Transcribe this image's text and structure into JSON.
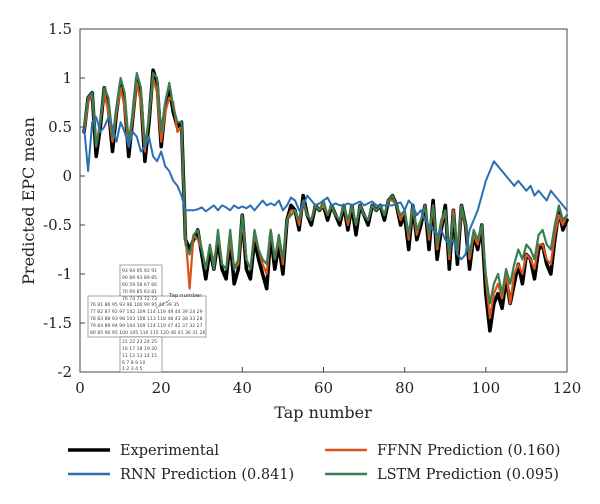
{
  "chart_data": {
    "type": "line",
    "xlabel": "Tap number",
    "ylabel": "Predicted EPC mean",
    "xlim": [
      0,
      120
    ],
    "ylim": [
      -2,
      1.5
    ],
    "xticks": [
      "0",
      "20",
      "40",
      "60",
      "80",
      "100",
      "120"
    ],
    "yticks": [
      "1.5",
      "1",
      "0.5",
      "0",
      "-0.5",
      "-1",
      "-1.5",
      "-2"
    ],
    "grid": false,
    "legend_position": "below",
    "x": [
      1,
      2,
      3,
      4,
      5,
      6,
      7,
      8,
      9,
      10,
      11,
      12,
      13,
      14,
      15,
      16,
      17,
      18,
      19,
      20,
      21,
      22,
      23,
      24,
      25,
      26,
      27,
      28,
      29,
      30,
      31,
      32,
      33,
      34,
      35,
      36,
      37,
      38,
      39,
      40,
      41,
      42,
      43,
      44,
      45,
      46,
      47,
      48,
      49,
      50,
      51,
      52,
      53,
      54,
      55,
      56,
      57,
      58,
      59,
      60,
      61,
      62,
      63,
      64,
      65,
      66,
      67,
      68,
      69,
      70,
      71,
      72,
      73,
      74,
      75,
      76,
      77,
      78,
      79,
      80,
      81,
      82,
      83,
      84,
      85,
      86,
      87,
      88,
      89,
      90,
      91,
      92,
      93,
      94,
      95,
      96,
      97,
      98,
      99,
      100,
      101,
      102,
      103,
      104,
      105,
      106,
      107,
      108,
      109,
      110,
      111,
      112,
      113,
      114,
      115,
      116,
      117,
      118,
      119,
      120
    ],
    "series": [
      {
        "name": "Experimental",
        "color": "#000000",
        "width": 3.6,
        "values": [
          0.45,
          0.8,
          0.85,
          0.2,
          0.5,
          0.9,
          0.7,
          0.25,
          0.65,
          0.95,
          0.75,
          0.2,
          0.6,
          1.0,
          0.8,
          0.15,
          0.55,
          1.08,
          0.95,
          0.3,
          0.7,
          0.9,
          0.65,
          0.5,
          0.55,
          -0.65,
          -0.75,
          -0.65,
          -0.55,
          -0.8,
          -1.05,
          -0.75,
          -0.95,
          -0.65,
          -0.95,
          -1.05,
          -0.65,
          -1.1,
          -0.95,
          -0.4,
          -0.95,
          -1.05,
          -0.65,
          -0.85,
          -1.0,
          -1.15,
          -0.6,
          -0.95,
          -0.7,
          -1.0,
          -0.45,
          -0.3,
          -0.35,
          -0.55,
          -0.2,
          -0.4,
          -0.5,
          -0.3,
          -0.35,
          -0.3,
          -0.45,
          -0.3,
          -0.4,
          -0.5,
          -0.3,
          -0.55,
          -0.3,
          -0.6,
          -0.3,
          -0.4,
          -0.5,
          -0.3,
          -0.35,
          -0.3,
          -0.45,
          -0.25,
          -0.2,
          -0.3,
          -0.5,
          -0.4,
          -0.75,
          -0.3,
          -0.65,
          -0.5,
          -0.3,
          -0.75,
          -0.25,
          -0.85,
          -0.55,
          -0.3,
          -0.95,
          -0.35,
          -0.9,
          -0.3,
          -0.5,
          -0.95,
          -0.6,
          -0.75,
          -0.5,
          -1.2,
          -1.58,
          -1.3,
          -1.2,
          -1.35,
          -1.05,
          -1.3,
          -1.1,
          -0.9,
          -1.1,
          -0.8,
          -0.85,
          -1.05,
          -0.75,
          -0.7,
          -0.9,
          -1.0,
          -0.65,
          -0.35,
          -0.55,
          -0.45
        ]
      },
      {
        "name": "FFNN Prediction (0.160)",
        "color": "#d9541a",
        "width": 2.2,
        "values": [
          0.45,
          0.75,
          0.82,
          0.3,
          0.55,
          0.85,
          0.65,
          0.35,
          0.65,
          0.9,
          0.7,
          0.3,
          0.6,
          0.95,
          0.75,
          0.25,
          0.6,
          1.0,
          0.85,
          0.35,
          0.65,
          0.8,
          0.75,
          0.45,
          0.5,
          -0.6,
          -1.15,
          -0.6,
          -0.65,
          -0.75,
          -0.95,
          -0.7,
          -0.9,
          -0.6,
          -0.9,
          -0.95,
          -0.65,
          -0.95,
          -0.9,
          -0.45,
          -0.85,
          -0.95,
          -0.6,
          -0.75,
          -0.9,
          -1.0,
          -0.55,
          -0.85,
          -0.65,
          -0.9,
          -0.45,
          -0.35,
          -0.35,
          -0.5,
          -0.25,
          -0.4,
          -0.45,
          -0.3,
          -0.35,
          -0.3,
          -0.4,
          -0.3,
          -0.4,
          -0.45,
          -0.3,
          -0.5,
          -0.3,
          -0.5,
          -0.3,
          -0.4,
          -0.45,
          -0.3,
          -0.35,
          -0.3,
          -0.4,
          -0.25,
          -0.25,
          -0.3,
          -0.45,
          -0.35,
          -0.65,
          -0.3,
          -0.6,
          -0.45,
          -0.3,
          -0.65,
          -0.3,
          -0.75,
          -0.5,
          -0.35,
          -0.85,
          -0.35,
          -0.8,
          -0.35,
          -0.5,
          -0.85,
          -0.6,
          -0.7,
          -0.5,
          -1.05,
          -1.45,
          -1.2,
          -1.1,
          -1.25,
          -1.0,
          -1.3,
          -1.0,
          -0.9,
          -1.0,
          -0.8,
          -0.85,
          -0.95,
          -0.7,
          -0.7,
          -0.85,
          -0.9,
          -0.6,
          -0.4,
          -0.5,
          -0.4
        ]
      },
      {
        "name": "LSTM Prediction (0.095)",
        "color": "#3a7d4f",
        "width": 2.2,
        "values": [
          0.5,
          0.8,
          0.85,
          0.3,
          0.55,
          0.9,
          0.8,
          0.4,
          0.7,
          1.0,
          0.85,
          0.35,
          0.65,
          1.05,
          0.9,
          0.3,
          0.6,
          1.05,
          1.0,
          0.45,
          0.75,
          0.95,
          0.7,
          0.55,
          0.55,
          -0.7,
          -0.8,
          -0.6,
          -0.55,
          -0.75,
          -0.95,
          -0.7,
          -0.95,
          -0.55,
          -0.9,
          -0.95,
          -0.55,
          -0.95,
          -0.85,
          -0.4,
          -0.85,
          -0.95,
          -0.55,
          -0.75,
          -0.85,
          -0.9,
          -0.55,
          -0.85,
          -0.6,
          -0.85,
          -0.45,
          -0.4,
          -0.35,
          -0.45,
          -0.25,
          -0.4,
          -0.45,
          -0.3,
          -0.35,
          -0.25,
          -0.4,
          -0.3,
          -0.4,
          -0.45,
          -0.3,
          -0.45,
          -0.3,
          -0.5,
          -0.3,
          -0.4,
          -0.45,
          -0.3,
          -0.35,
          -0.3,
          -0.4,
          -0.25,
          -0.2,
          -0.3,
          -0.4,
          -0.35,
          -0.6,
          -0.3,
          -0.55,
          -0.45,
          -0.3,
          -0.6,
          -0.3,
          -0.7,
          -0.45,
          -0.35,
          -0.8,
          -0.4,
          -0.75,
          -0.3,
          -0.5,
          -0.8,
          -0.55,
          -0.65,
          -0.5,
          -1.0,
          -1.3,
          -1.1,
          -1.0,
          -1.2,
          -0.95,
          -1.1,
          -0.9,
          -0.75,
          -0.85,
          -0.7,
          -0.75,
          -0.85,
          -0.6,
          -0.55,
          -0.7,
          -0.75,
          -0.5,
          -0.3,
          -0.45,
          -0.4
        ]
      },
      {
        "name": "RNN Prediction (0.841)",
        "color": "#2a6fb5",
        "width": 2.0,
        "values": [
          0.5,
          0.05,
          0.55,
          0.6,
          0.45,
          0.5,
          0.6,
          0.5,
          0.35,
          0.55,
          0.45,
          0.3,
          0.45,
          0.4,
          0.25,
          0.3,
          0.4,
          0.2,
          0.15,
          0.25,
          0.1,
          0.05,
          -0.05,
          -0.1,
          -0.2,
          -0.35,
          -0.35,
          -0.35,
          -0.34,
          -0.32,
          -0.36,
          -0.33,
          -0.3,
          -0.35,
          -0.3,
          -0.32,
          -0.35,
          -0.3,
          -0.33,
          -0.31,
          -0.33,
          -0.3,
          -0.35,
          -0.3,
          -0.25,
          -0.3,
          -0.28,
          -0.3,
          -0.25,
          -0.35,
          -0.3,
          -0.22,
          -0.25,
          -0.35,
          -0.3,
          -0.2,
          -0.25,
          -0.3,
          -0.28,
          -0.25,
          -0.22,
          -0.3,
          -0.28,
          -0.3,
          -0.3,
          -0.28,
          -0.3,
          -0.28,
          -0.26,
          -0.3,
          -0.28,
          -0.26,
          -0.3,
          -0.3,
          -0.3,
          -0.3,
          -0.3,
          -0.28,
          -0.27,
          -0.35,
          -0.25,
          -0.3,
          -0.4,
          -0.35,
          -0.45,
          -0.5,
          -0.55,
          -0.6,
          -0.55,
          -0.65,
          -0.7,
          -0.65,
          -0.8,
          -0.85,
          -0.8,
          -0.55,
          -0.45,
          -0.35,
          -0.2,
          -0.05,
          0.05,
          0.15,
          0.1,
          0.05,
          0.0,
          -0.05,
          -0.1,
          -0.05,
          -0.1,
          -0.15,
          -0.1,
          -0.2,
          -0.15,
          -0.2,
          -0.25,
          -0.15,
          -0.2,
          -0.25,
          -0.3,
          -0.35
        ]
      }
    ],
    "legend": {
      "experimental": "Experimental",
      "ffnn": "FFNN Prediction (0.160)",
      "rnn": "RNN Prediction (0.841)",
      "lstm": "LSTM Prediction (0.095)"
    },
    "inset": {
      "label": "Tap number",
      "rows": [
        "93 94  95 92 91",
        "90 89  93 89 85",
        "60 59  58 67 66",
        "70 69  85 63 81",
        "76 74  73 72 73",
        "76 81  86 95 93 96 100 90 95  40 39 35",
        "77 82  87 92 97 102 109 114 119 49 44 39 24 29",
        "78 83  88 93 98 103 108 113 118 48 43 38 33 28",
        "79 84  89 94 99 104 109 114 119 47 42 37 32 27",
        "80 85  90 95 100 105 110 115 120 46 41 36 31 26",
        "21 22  23 24 25",
        "16 17  18 19 20",
        "11 12  13 14 15",
        "6  7  8  9 10",
        "1  2   3  4  5"
      ]
    }
  }
}
